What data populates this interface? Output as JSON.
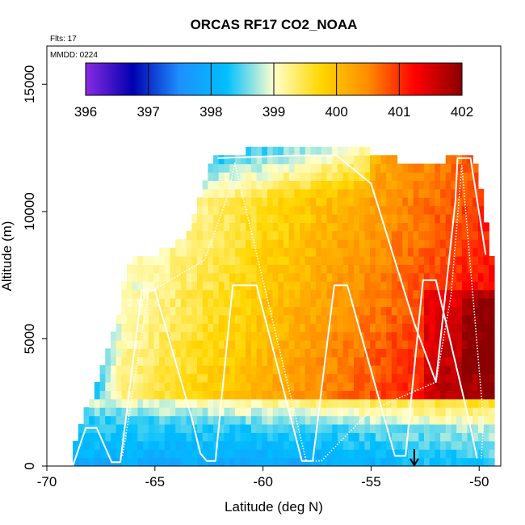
{
  "chart_data": {
    "type": "heatmap",
    "title": "ORCAS RF17 CO2_NOAA",
    "subtitle_flights": "Flts: 17",
    "subtitle_date": "MMDD: 0224",
    "xlabel": "Latitude (deg N)",
    "ylabel": "Altitude (m)",
    "xlim": [
      -70,
      -49
    ],
    "ylim": [
      0,
      16500
    ],
    "xticks": [
      -70,
      -65,
      -60,
      -55,
      -50
    ],
    "yticks": [
      0,
      5000,
      10000,
      15000
    ],
    "xtick_labels": [
      "-70",
      "-65",
      "-60",
      "-55",
      "-50"
    ],
    "ytick_labels": [
      "0",
      "5000",
      "10000",
      "15000"
    ],
    "colorbar": {
      "min": 396,
      "max": 402,
      "ticks": [
        396,
        397,
        398,
        399,
        400,
        401,
        402
      ],
      "tick_labels": [
        "396",
        "397",
        "398",
        "399",
        "400",
        "401",
        "402"
      ],
      "colors": [
        "#8a2be2",
        "#0000b0",
        "#1e90ff",
        "#00bfff",
        "#ffffcc",
        "#ffd700",
        "#ff8c00",
        "#ff0000",
        "#8b0000"
      ]
    },
    "flight_track": [
      [
        -68.8,
        0
      ],
      [
        -68.2,
        1500
      ],
      [
        -67.7,
        1500
      ],
      [
        -67.0,
        150
      ],
      [
        -66.6,
        150
      ],
      [
        -65.6,
        6900
      ],
      [
        -65.0,
        6900
      ],
      [
        -63.3,
        1900
      ],
      [
        -62.9,
        500
      ],
      [
        -62.6,
        200
      ],
      [
        -62.2,
        200
      ],
      [
        -61.4,
        7100
      ],
      [
        -60.3,
        7100
      ],
      [
        -58.2,
        200
      ],
      [
        -57.7,
        200
      ],
      [
        -56.7,
        7100
      ],
      [
        -56.1,
        7100
      ],
      [
        -53.9,
        400
      ],
      [
        -53.4,
        400
      ],
      [
        -52.6,
        7300
      ],
      [
        -52.0,
        7300
      ],
      [
        -50.5,
        1900
      ],
      [
        -50.1,
        300
      ]
    ],
    "flight_track_upper": [
      [
        -62.1,
        12100
      ],
      [
        -58.5,
        12200
      ],
      [
        -56.6,
        12200
      ],
      [
        -55.0,
        11100
      ],
      [
        -53.0,
        5600
      ],
      [
        -52.0,
        3300
      ],
      [
        -51.1,
        10400
      ],
      [
        -51.0,
        12100
      ],
      [
        -50.4,
        12100
      ],
      [
        -49.7,
        8300
      ]
    ],
    "flight_track_dotted": [
      [
        -66.5,
        400
      ],
      [
        -65.3,
        6800
      ],
      [
        -62.7,
        8100
      ],
      [
        -61.6,
        10700
      ],
      [
        -61.3,
        11900
      ],
      [
        -58.0,
        200
      ],
      [
        -57.3,
        200
      ],
      [
        -55.0,
        2200
      ],
      [
        -52.0,
        3300
      ],
      [
        -51.3,
        6700
      ],
      [
        -50.8,
        11800
      ],
      [
        -49.8,
        1800
      ],
      [
        -49.9,
        300
      ]
    ],
    "marker": {
      "label": "↓",
      "x": -53.0,
      "y": 800
    }
  }
}
